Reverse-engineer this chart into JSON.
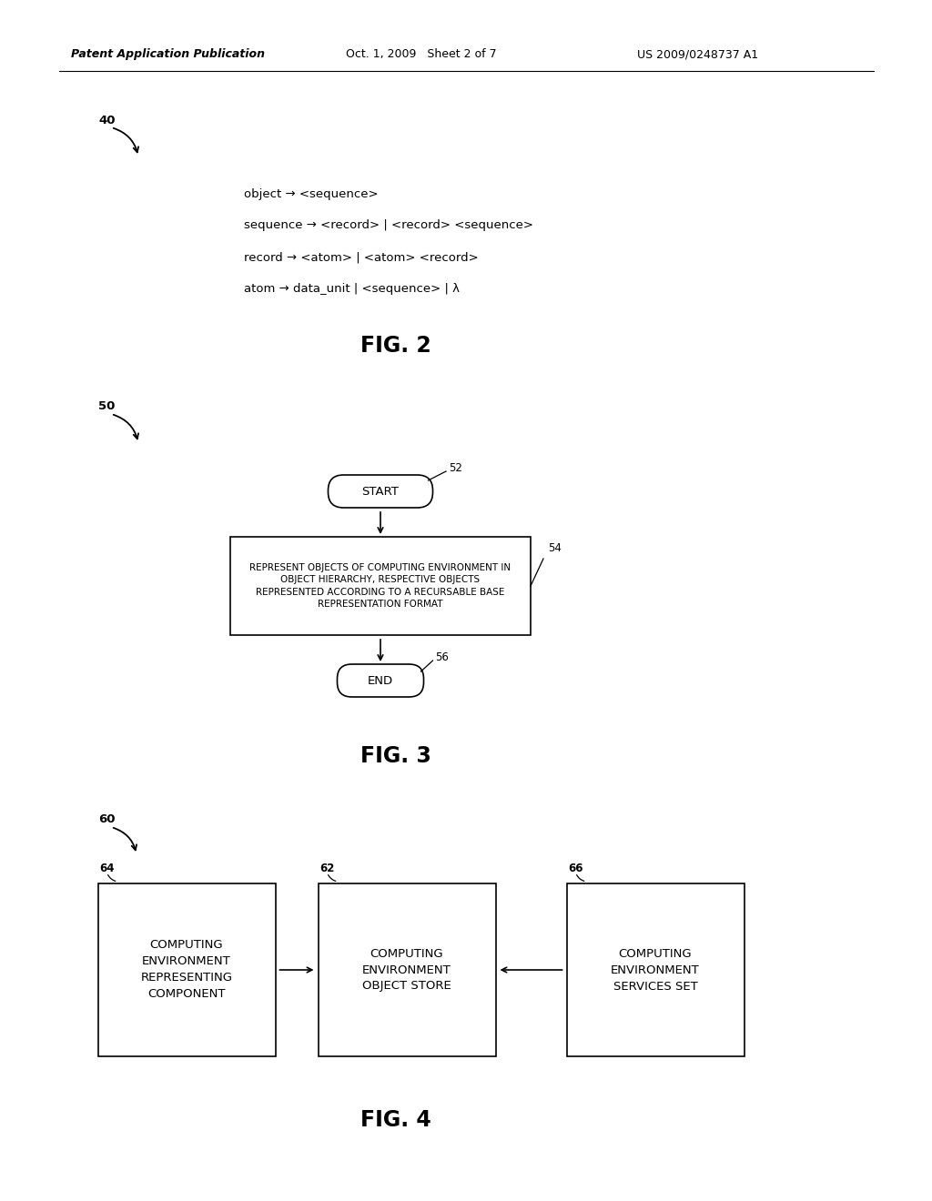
{
  "bg_color": "#ffffff",
  "header_left": "Patent Application Publication",
  "header_mid": "Oct. 1, 2009   Sheet 2 of 7",
  "header_right": "US 2009/0248737 A1",
  "fig2_label": "40",
  "fig2_lines": [
    "object → <sequence>",
    "sequence → <record> | <record> <sequence>",
    "record → <atom> | <atom> <record>",
    "atom → data_unit | <sequence> | λ"
  ],
  "fig2_caption": "FIG. 2",
  "fig3_label": "50",
  "fig3_caption": "FIG. 3",
  "fig3_start_label": "52",
  "fig3_process_label": "54",
  "fig3_end_label": "56",
  "fig3_start_text": "START",
  "fig3_process_text": "REPRESENT OBJECTS OF COMPUTING ENVIRONMENT IN\nOBJECT HIERARCHY, RESPECTIVE OBJECTS\nREPRESENTED ACCORDING TO A RECURSABLE BASE\nREPRESENTATION FORMAT",
  "fig3_end_text": "END",
  "fig4_label": "60",
  "fig4_caption": "FIG. 4",
  "fig4_box1_label": "64",
  "fig4_box2_label": "62",
  "fig4_box3_label": "66",
  "fig4_box1_text": "COMPUTING\nENVIRONMENT\nREPRESENTING\nCOMPONENT",
  "fig4_box2_text": "COMPUTING\nENVIRONMENT\nOBJECT STORE",
  "fig4_box3_text": "COMPUTING\nENVIRONMENT\nSERVICES SET"
}
